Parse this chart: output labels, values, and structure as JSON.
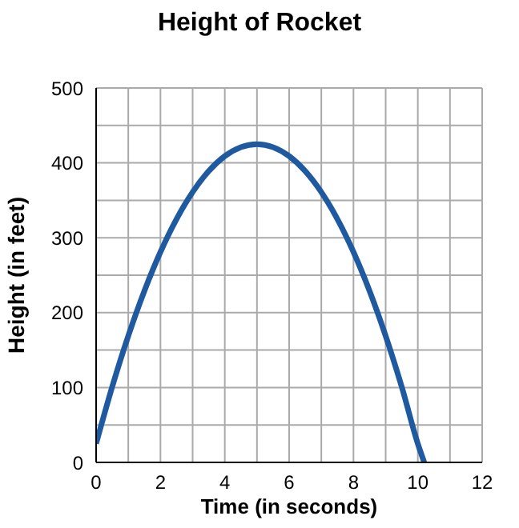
{
  "chart_data": {
    "type": "line",
    "title": "Height of Rocket",
    "xlabel": "Time (in seconds)",
    "ylabel": "Height (in feet)",
    "x": [
      0,
      0.5,
      1,
      1.5,
      2,
      2.5,
      3,
      3.5,
      4,
      4.5,
      5,
      5.5,
      6,
      6.5,
      7,
      7.5,
      8,
      8.5,
      9,
      9.5,
      10,
      10.2
    ],
    "series": [
      {
        "color": "#1f5aa0",
        "values": [
          25,
          101,
          169,
          229,
          281,
          325,
          361,
          389,
          409,
          421,
          425,
          421,
          409,
          389,
          361,
          325,
          281,
          229,
          169,
          101,
          25,
          0
        ]
      }
    ],
    "xlim": [
      0,
      12
    ],
    "xticks": [
      0,
      {
        "value": 1,
        "label": null
      },
      2,
      {
        "value": 3,
        "label": null
      },
      4,
      {
        "value": 5,
        "label": null
      },
      6,
      {
        "value": 7,
        "label": null
      },
      8,
      {
        "value": 9,
        "label": null
      },
      10,
      {
        "value": 11,
        "label": null
      },
      12
    ],
    "ylim": [
      0,
      500
    ],
    "yticks": [
      0,
      {
        "value": 50,
        "label": null
      },
      100,
      {
        "value": 150,
        "label": null
      },
      200,
      {
        "value": 250,
        "label": null
      },
      300,
      {
        "value": 350,
        "label": null
      },
      400,
      {
        "value": 450,
        "label": null
      },
      500
    ],
    "grid": true,
    "legend": false,
    "marker": "none",
    "line_style": "solid"
  }
}
